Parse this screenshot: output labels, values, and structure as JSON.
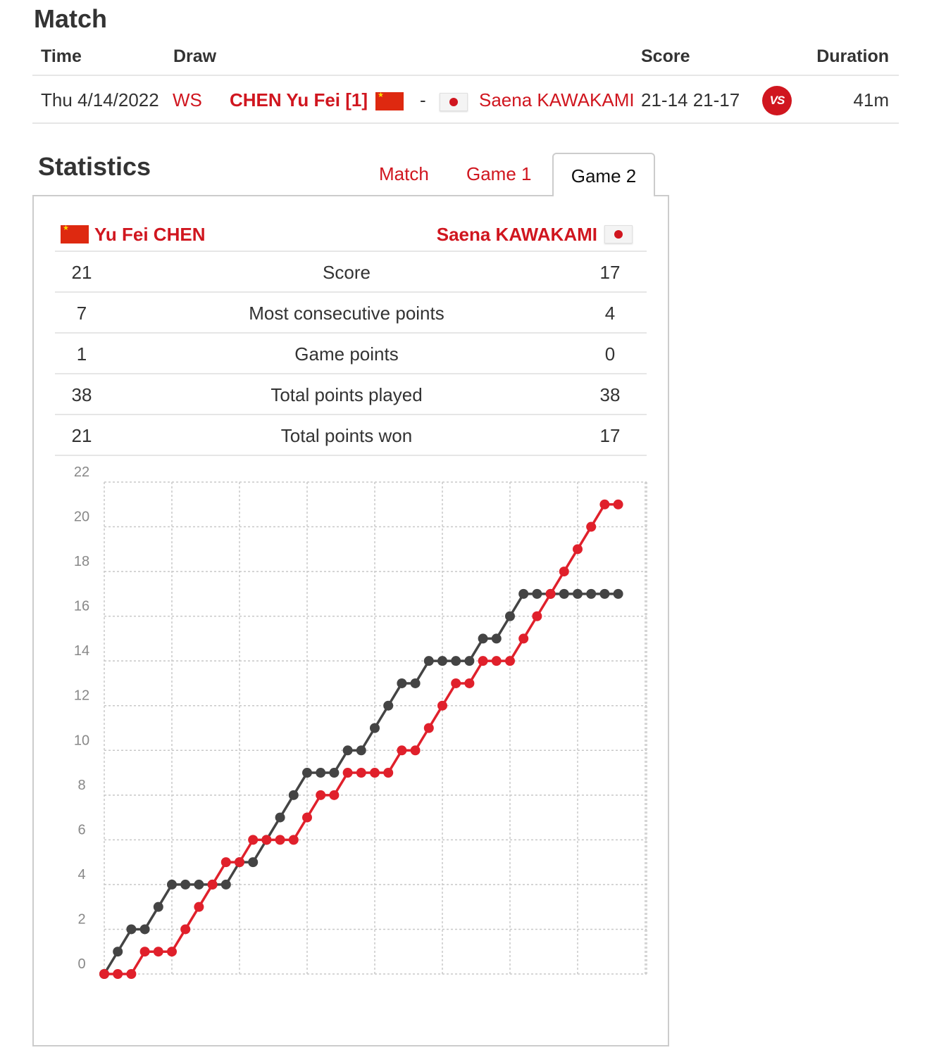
{
  "match": {
    "title": "Match",
    "headers": {
      "time": "Time",
      "draw": "Draw",
      "score": "Score",
      "duration": "Duration"
    },
    "row": {
      "time": "Thu 4/14/2022",
      "draw": "WS",
      "player1": "CHEN Yu Fei [1]",
      "separator": "-",
      "player2": "Saena KAWAKAMI",
      "score": "21-14 21-17",
      "vs_label": "VS",
      "duration": "41m"
    }
  },
  "statistics": {
    "title": "Statistics",
    "tabs": [
      {
        "label": "Match",
        "active": false
      },
      {
        "label": "Game 1",
        "active": false
      },
      {
        "label": "Game 2",
        "active": true
      }
    ],
    "player1": {
      "name": "Yu Fei CHEN",
      "flag": "china-flag-icon",
      "color": "#d0161f"
    },
    "player2": {
      "name": "Saena KAWAKAMI",
      "flag": "japan-flag-icon",
      "color": "#444444"
    },
    "rows": [
      {
        "left": "21",
        "label": "Score",
        "right": "17"
      },
      {
        "left": "7",
        "label": "Most consecutive points",
        "right": "4"
      },
      {
        "left": "1",
        "label": "Game points",
        "right": "0"
      },
      {
        "left": "38",
        "label": "Total points played",
        "right": "38"
      },
      {
        "left": "21",
        "label": "Total points won",
        "right": "17"
      }
    ]
  },
  "chart_data": {
    "type": "line",
    "title": "",
    "xlabel": "",
    "ylabel": "",
    "ylim": [
      0,
      22
    ],
    "yticks": [
      0,
      2,
      4,
      6,
      8,
      10,
      12,
      14,
      16,
      18,
      20,
      22
    ],
    "grid": true,
    "x": [
      0,
      1,
      2,
      3,
      4,
      5,
      6,
      7,
      8,
      9,
      10,
      11,
      12,
      13,
      14,
      15,
      16,
      17,
      18,
      19,
      20,
      21,
      22,
      23,
      24,
      25,
      26,
      27,
      28,
      29,
      30,
      31,
      32,
      33,
      34,
      35,
      36,
      37,
      38
    ],
    "series": [
      {
        "color": "#e0202b",
        "values": [
          0,
          0,
          0,
          1,
          1,
          1,
          2,
          3,
          4,
          5,
          5,
          6,
          6,
          6,
          6,
          7,
          8,
          8,
          9,
          9,
          9,
          9,
          10,
          10,
          11,
          12,
          13,
          13,
          14,
          14,
          14,
          15,
          16,
          17,
          18,
          19,
          20,
          21,
          21
        ]
      },
      {
        "color": "#444444",
        "values": [
          0,
          1,
          2,
          2,
          3,
          4,
          4,
          4,
          4,
          4,
          5,
          5,
          6,
          7,
          8,
          9,
          9,
          9,
          10,
          10,
          11,
          12,
          13,
          13,
          14,
          14,
          14,
          14,
          15,
          15,
          16,
          17,
          17,
          17,
          17,
          17,
          17,
          17,
          17
        ]
      }
    ]
  }
}
